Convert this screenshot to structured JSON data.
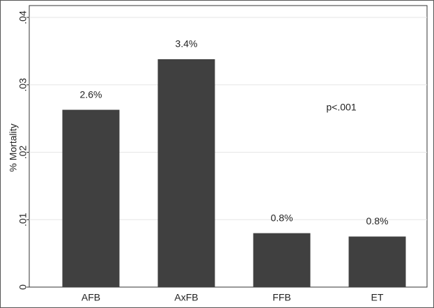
{
  "chart_data": {
    "type": "bar",
    "y_label": "% Mortality",
    "categories": [
      "AFB",
      "AxFB",
      "FFB",
      "ET"
    ],
    "values": [
      0.0263,
      0.0338,
      0.008,
      0.0075
    ],
    "value_labels": [
      "2.6%",
      "3.4%",
      "0.8%",
      "0.8%"
    ],
    "color": "#404040",
    "ylim": [
      0,
      0.04
    ],
    "yticks": [
      0,
      {
        "value": 0.01,
        "label": ".01"
      },
      {
        "value": 0.02,
        "label": ".02"
      },
      {
        "value": 0.03,
        "label": ".03"
      },
      {
        "value": 0.04,
        "label": ".04"
      }
    ],
    "grid": true,
    "annotation": "p<.001"
  }
}
